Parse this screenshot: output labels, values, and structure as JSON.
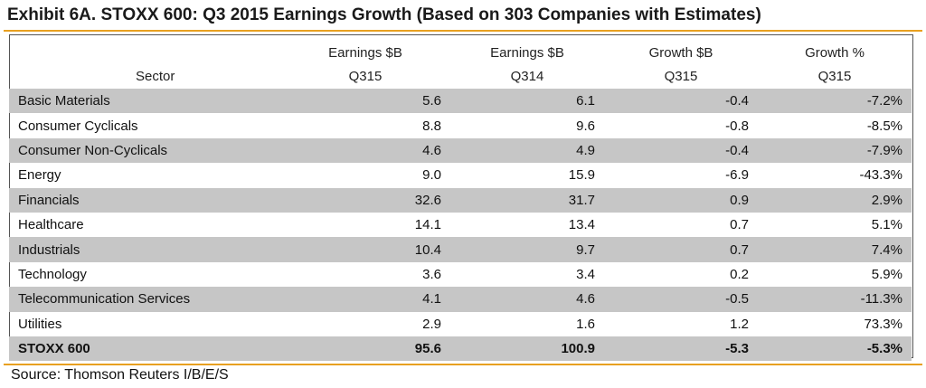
{
  "title": "Exhibit 6A.  STOXX 600: Q3 2015 Earnings Growth (Based on 303 Companies with Estimates)",
  "columns": [
    {
      "line1": "",
      "line2": "Sector"
    },
    {
      "line1": "Earnings $B",
      "line2": "Q315"
    },
    {
      "line1": "Earnings $B",
      "line2": "Q314"
    },
    {
      "line1": "Growth $B",
      "line2": "Q315"
    },
    {
      "line1": "Growth %",
      "line2": "Q315"
    }
  ],
  "rows": [
    [
      "Basic Materials",
      "5.6",
      "6.1",
      "-0.4",
      "-7.2%"
    ],
    [
      "Consumer Cyclicals",
      "8.8",
      "9.6",
      "-0.8",
      "-8.5%"
    ],
    [
      "Consumer Non-Cyclicals",
      "4.6",
      "4.9",
      "-0.4",
      "-7.9%"
    ],
    [
      "Energy",
      "9.0",
      "15.9",
      "-6.9",
      "-43.3%"
    ],
    [
      "Financials",
      "32.6",
      "31.7",
      "0.9",
      "2.9%"
    ],
    [
      "Healthcare",
      "14.1",
      "13.4",
      "0.7",
      "5.1%"
    ],
    [
      "Industrials",
      "10.4",
      "9.7",
      "0.7",
      "7.4%"
    ],
    [
      "Technology",
      "3.6",
      "3.4",
      "0.2",
      "5.9%"
    ],
    [
      "Telecommunication Services",
      "4.1",
      "4.6",
      "-0.5",
      "-11.3%"
    ],
    [
      "Utilities",
      "2.9",
      "1.6",
      "1.2",
      "73.3%"
    ]
  ],
  "total": [
    "STOXX 600",
    "95.6",
    "100.9",
    "-5.3",
    "-5.3%"
  ],
  "source": "Source: Thomson Reuters I/B/E/S",
  "colors": {
    "accent_rule": "#e8a020",
    "row_shade": "#c6c6c6"
  }
}
